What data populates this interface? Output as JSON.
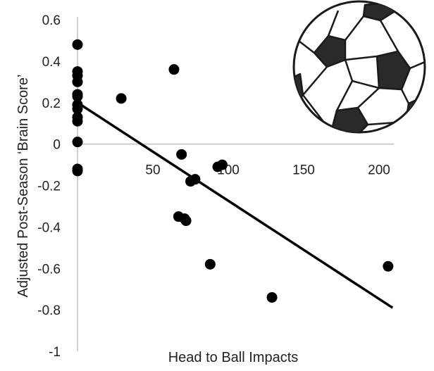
{
  "chart_data": {
    "type": "scatter",
    "title": "",
    "xlabel": "Head to Ball Impacts",
    "ylabel": "Adjusted Post-Season ‘Brain Score’",
    "xlim": [
      0,
      210
    ],
    "ylim": [
      -1,
      0.6
    ],
    "x_ticks": [
      {
        "value": 0,
        "label": "0"
      },
      {
        "value": 50,
        "label": "50"
      },
      {
        "value": 100,
        "label": "100"
      },
      {
        "value": 150,
        "label": "150"
      },
      {
        "value": 200,
        "label": "200"
      }
    ],
    "y_ticks": [
      {
        "value": 0.6,
        "label": "0.6"
      },
      {
        "value": 0.4,
        "label": "0.4"
      },
      {
        "value": 0.2,
        "label": "0.2"
      },
      {
        "value": 0,
        "label": "0"
      },
      {
        "value": -0.2,
        "label": "-0.2"
      },
      {
        "value": -0.4,
        "label": "-0.4"
      },
      {
        "value": -0.6,
        "label": "-0.6"
      },
      {
        "value": -0.8,
        "label": "-0.8"
      },
      {
        "value": -1,
        "label": "-1"
      }
    ],
    "grid": false,
    "legend": "none",
    "marker_color": "#000000",
    "points": [
      {
        "x": 0,
        "y": 0.48
      },
      {
        "x": 0,
        "y": 0.35
      },
      {
        "x": 0,
        "y": 0.33
      },
      {
        "x": 0,
        "y": 0.3
      },
      {
        "x": 0,
        "y": 0.24
      },
      {
        "x": 0,
        "y": 0.23
      },
      {
        "x": 0,
        "y": 0.19
      },
      {
        "x": 0,
        "y": 0.17
      },
      {
        "x": 0,
        "y": 0.13
      },
      {
        "x": 0,
        "y": 0.11
      },
      {
        "x": 0,
        "y": 0.01
      },
      {
        "x": 0,
        "y": -0.12
      },
      {
        "x": 0,
        "y": -0.13
      },
      {
        "x": 29,
        "y": 0.22
      },
      {
        "x": 64,
        "y": 0.36
      },
      {
        "x": 69,
        "y": -0.05
      },
      {
        "x": 67,
        "y": -0.35
      },
      {
        "x": 71,
        "y": -0.36
      },
      {
        "x": 72,
        "y": -0.37
      },
      {
        "x": 75,
        "y": -0.18
      },
      {
        "x": 78,
        "y": -0.17
      },
      {
        "x": 93,
        "y": -0.11
      },
      {
        "x": 96,
        "y": -0.1
      },
      {
        "x": 88,
        "y": -0.58
      },
      {
        "x": 129,
        "y": -0.74
      },
      {
        "x": 206,
        "y": -0.59
      }
    ],
    "trendline": {
      "x": [
        0,
        209
      ],
      "y": [
        0.2,
        -0.79
      ]
    }
  },
  "decoration": {
    "icon": "soccer-ball-icon"
  }
}
